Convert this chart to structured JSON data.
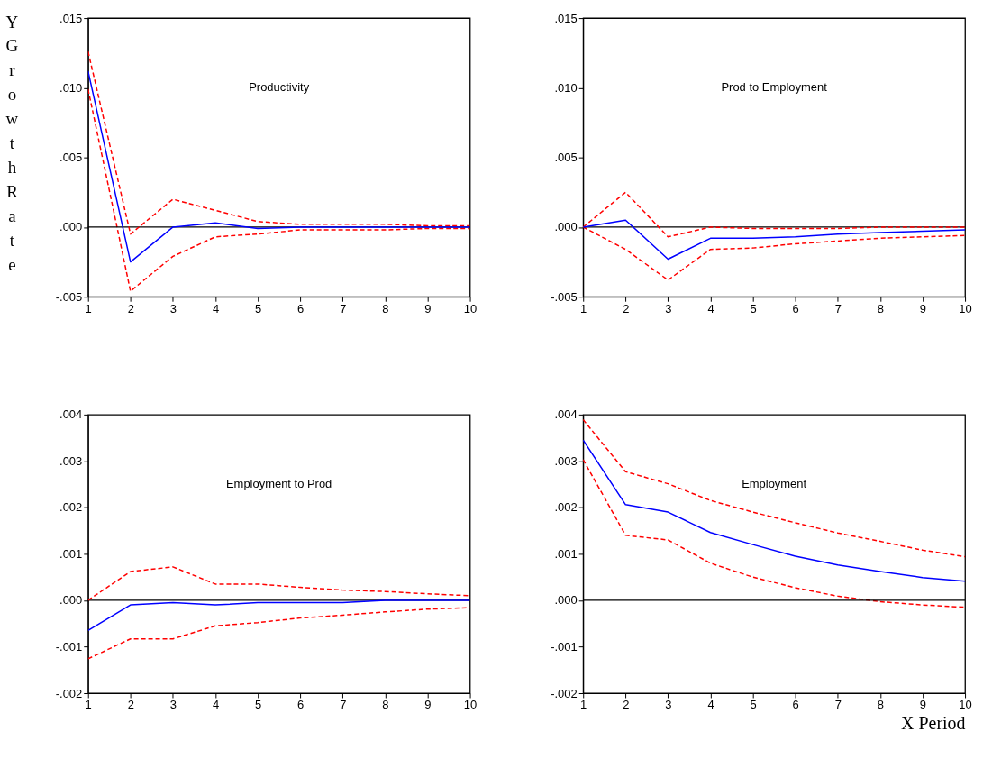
{
  "chart_data": [
    {
      "type": "line",
      "title": "Productivity",
      "ylabel": "Y Growth Rate",
      "x": [
        1,
        2,
        3,
        4,
        5,
        6,
        7,
        8,
        9,
        10
      ],
      "xlim": [
        1,
        10
      ],
      "xticks": [
        1,
        2,
        3,
        4,
        5,
        6,
        7,
        8,
        9,
        10
      ],
      "ylim": [
        -0.005,
        0.015
      ],
      "yticks": [
        {
          "value": -0.005,
          "label": "-.005"
        },
        {
          "value": 0,
          "label": ".000"
        },
        {
          "value": 0.005,
          "label": ".005"
        },
        {
          "value": 0.01,
          "label": ".010"
        },
        {
          "value": 0.015,
          "label": ".015"
        }
      ],
      "series": [
        {
          "color": "#0000ff",
          "line_style": "solid",
          "values": [
            0.0112,
            -0.0025,
            0.0,
            0.0003,
            -0.0001,
            0.0,
            0.0,
            0.0,
            0.0,
            0.0
          ]
        },
        {
          "color": "#ff0000",
          "line_style": "dashed",
          "values": [
            0.0126,
            -0.0005,
            0.002,
            0.0012,
            0.0004,
            0.0002,
            0.0002,
            0.0002,
            0.0001,
            0.0001
          ]
        },
        {
          "color": "#ff0000",
          "line_style": "dashed",
          "values": [
            0.0099,
            -0.0046,
            -0.0021,
            -0.0007,
            -0.0005,
            -0.0002,
            -0.0002,
            -0.0002,
            -0.0001,
            -0.0001
          ]
        }
      ],
      "ref_lines": [
        {
          "axis": "y",
          "value": 0,
          "color": "#000000"
        }
      ]
    },
    {
      "type": "line",
      "title": "Prod to Employment",
      "x": [
        1,
        2,
        3,
        4,
        5,
        6,
        7,
        8,
        9,
        10
      ],
      "xlim": [
        1,
        10
      ],
      "xticks": [
        1,
        2,
        3,
        4,
        5,
        6,
        7,
        8,
        9,
        10
      ],
      "ylim": [
        -0.005,
        0.015
      ],
      "yticks": [
        {
          "value": -0.005,
          "label": "-.005"
        },
        {
          "value": 0,
          "label": ".000"
        },
        {
          "value": 0.005,
          "label": ".005"
        },
        {
          "value": 0.01,
          "label": ".010"
        },
        {
          "value": 0.015,
          "label": ".015"
        }
      ],
      "series": [
        {
          "color": "#0000ff",
          "line_style": "solid",
          "values": [
            0.0,
            0.0005,
            -0.0023,
            -0.0008,
            -0.0008,
            -0.0007,
            -0.0005,
            -0.0004,
            -0.0003,
            -0.0002
          ]
        },
        {
          "color": "#ff0000",
          "line_style": "dashed",
          "values": [
            0.0,
            0.0025,
            -0.0007,
            0.0,
            -0.0001,
            -0.0001,
            -0.0001,
            0.0,
            0.0,
            0.0
          ]
        },
        {
          "color": "#ff0000",
          "line_style": "dashed",
          "values": [
            0.0,
            -0.0016,
            -0.0038,
            -0.0016,
            -0.0015,
            -0.0012,
            -0.001,
            -0.0008,
            -0.0007,
            -0.0006
          ]
        }
      ],
      "ref_lines": [
        {
          "axis": "y",
          "value": 0,
          "color": "#000000"
        }
      ]
    },
    {
      "type": "line",
      "title": "Employment to Prod",
      "x": [
        1,
        2,
        3,
        4,
        5,
        6,
        7,
        8,
        9,
        10
      ],
      "xlim": [
        1,
        10
      ],
      "xticks": [
        1,
        2,
        3,
        4,
        5,
        6,
        7,
        8,
        9,
        10
      ],
      "ylim": [
        -0.002,
        0.004
      ],
      "yticks": [
        {
          "value": -0.002,
          "label": "-.002"
        },
        {
          "value": -0.001,
          "label": "-.001"
        },
        {
          "value": 0,
          "label": ".000"
        },
        {
          "value": 0.001,
          "label": ".001"
        },
        {
          "value": 0.002,
          "label": ".002"
        },
        {
          "value": 0.003,
          "label": ".003"
        },
        {
          "value": 0.004,
          "label": ".004"
        }
      ],
      "series": [
        {
          "color": "#0000ff",
          "line_style": "solid",
          "values": [
            -0.00065,
            -0.0001,
            -5e-05,
            -0.0001,
            -5e-05,
            -5e-05,
            -5e-05,
            0.0,
            0.0,
            0.0
          ]
        },
        {
          "color": "#ff0000",
          "line_style": "dashed",
          "values": [
            0.0,
            0.00062,
            0.00072,
            0.00035,
            0.00035,
            0.00028,
            0.00022,
            0.00019,
            0.00014,
            0.0001
          ]
        },
        {
          "color": "#ff0000",
          "line_style": "dashed",
          "values": [
            -0.00126,
            -0.00083,
            -0.00083,
            -0.00055,
            -0.00048,
            -0.00038,
            -0.00032,
            -0.00025,
            -0.00019,
            -0.00016
          ]
        }
      ],
      "ref_lines": [
        {
          "axis": "y",
          "value": 0,
          "color": "#000000"
        }
      ]
    },
    {
      "type": "line",
      "title": "Employment",
      "xlabel": "X Period",
      "x": [
        1,
        2,
        3,
        4,
        5,
        6,
        7,
        8,
        9,
        10
      ],
      "xlim": [
        1,
        10
      ],
      "xticks": [
        1,
        2,
        3,
        4,
        5,
        6,
        7,
        8,
        9,
        10
      ],
      "ylim": [
        -0.002,
        0.004
      ],
      "yticks": [
        {
          "value": -0.002,
          "label": "-.002"
        },
        {
          "value": -0.001,
          "label": "-.001"
        },
        {
          "value": 0,
          "label": ".000"
        },
        {
          "value": 0.001,
          "label": ".001"
        },
        {
          "value": 0.002,
          "label": ".002"
        },
        {
          "value": 0.003,
          "label": ".003"
        },
        {
          "value": 0.004,
          "label": ".004"
        }
      ],
      "series": [
        {
          "color": "#0000ff",
          "line_style": "solid",
          "values": [
            0.00345,
            0.00206,
            0.0019,
            0.00146,
            0.0012,
            0.00095,
            0.00076,
            0.00062,
            0.00049,
            0.00041
          ]
        },
        {
          "color": "#ff0000",
          "line_style": "dashed",
          "values": [
            0.00389,
            0.00277,
            0.00251,
            0.00215,
            0.0019,
            0.00167,
            0.00145,
            0.00127,
            0.00108,
            0.00094
          ]
        },
        {
          "color": "#ff0000",
          "line_style": "dashed",
          "values": [
            0.00303,
            0.0014,
            0.0013,
            0.0008,
            0.0005,
            0.00027,
            9e-05,
            -3e-05,
            -0.0001,
            -0.00015
          ]
        }
      ],
      "ref_lines": [
        {
          "axis": "y",
          "value": 0,
          "color": "#000000"
        }
      ]
    }
  ]
}
